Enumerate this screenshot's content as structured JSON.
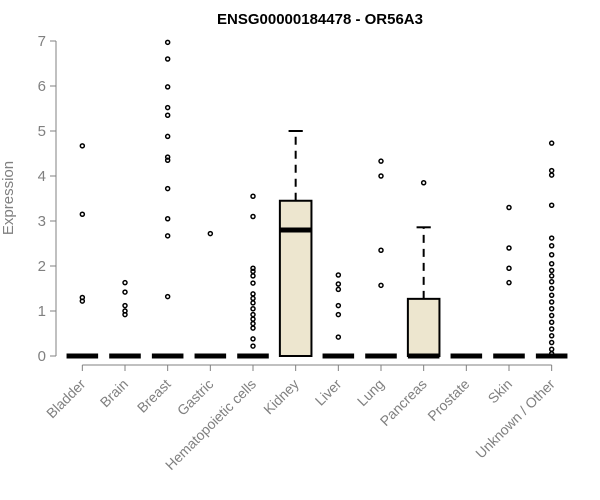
{
  "chart_data": {
    "type": "box",
    "title": "ENSG00000184478 - OR56A3",
    "xlabel": "",
    "ylabel": "Expression",
    "ylim": [
      0,
      7
    ],
    "yticks": [
      "0",
      "1",
      "2",
      "3",
      "4",
      "5",
      "6",
      "7"
    ],
    "grid": false,
    "legend": "none",
    "colors": {
      "box_fill": "#ede6cf",
      "stroke": "#000000",
      "axis": "#808080",
      "text": "#808080"
    },
    "categories": [
      "Bladder",
      "Brain",
      "Breast",
      "Gastric",
      "Hematopoietic cells",
      "Kidney",
      "Liver",
      "Lung",
      "Pancreas",
      "Prostate",
      "Skin",
      "Unknown / Other"
    ],
    "boxes": [
      {
        "category": "Bladder",
        "q1": 0,
        "median": 0,
        "q3": 0,
        "whisker_low": 0,
        "whisker_high": 0,
        "outliers": [
          1.22,
          1.3,
          3.15,
          4.67
        ]
      },
      {
        "category": "Brain",
        "q1": 0,
        "median": 0,
        "q3": 0,
        "whisker_low": 0,
        "whisker_high": 0,
        "outliers": [
          0.92,
          1.0,
          1.12,
          1.42,
          1.63
        ]
      },
      {
        "category": "Breast",
        "q1": 0,
        "median": 0,
        "q3": 0,
        "whisker_low": 0,
        "whisker_high": 0,
        "outliers": [
          1.32,
          2.67,
          3.05,
          3.72,
          4.35,
          4.42,
          4.88,
          5.35,
          5.52,
          5.98,
          6.6,
          6.97
        ]
      },
      {
        "category": "Gastric",
        "q1": 0,
        "median": 0,
        "q3": 0,
        "whisker_low": 0,
        "whisker_high": 0,
        "outliers": [
          2.72
        ]
      },
      {
        "category": "Hematopoietic cells",
        "q1": 0,
        "median": 0,
        "q3": 0,
        "whisker_low": 0,
        "whisker_high": 0,
        "outliers": [
          0.22,
          0.38,
          0.62,
          0.72,
          0.82,
          0.92,
          1.05,
          1.18,
          1.28,
          1.38,
          1.62,
          1.78,
          1.88,
          1.95,
          3.1,
          3.55
        ]
      },
      {
        "category": "Kidney",
        "q1": 0,
        "median": 2.8,
        "q3": 3.45,
        "whisker_low": 0,
        "whisker_high": 5.0,
        "outliers": []
      },
      {
        "category": "Liver",
        "q1": 0,
        "median": 0,
        "q3": 0,
        "whisker_low": 0,
        "whisker_high": 0,
        "outliers": [
          0.42,
          0.92,
          1.12,
          1.48,
          1.6,
          1.8
        ]
      },
      {
        "category": "Lung",
        "q1": 0,
        "median": 0,
        "q3": 0,
        "whisker_low": 0,
        "whisker_high": 0,
        "outliers": [
          1.57,
          2.35,
          4.0,
          4.33
        ]
      },
      {
        "category": "Pancreas",
        "q1": 0,
        "median": 0,
        "q3": 1.27,
        "whisker_low": 0,
        "whisker_high": 2.86,
        "outliers": [
          3.85
        ]
      },
      {
        "category": "Prostate",
        "q1": 0,
        "median": 0,
        "q3": 0,
        "whisker_low": 0,
        "whisker_high": 0,
        "outliers": []
      },
      {
        "category": "Skin",
        "q1": 0,
        "median": 0,
        "q3": 0,
        "whisker_low": 0,
        "whisker_high": 0,
        "outliers": [
          1.63,
          1.95,
          2.4,
          3.3
        ]
      },
      {
        "category": "Unknown / Other",
        "q1": 0,
        "median": 0,
        "q3": 0,
        "whisker_low": 0,
        "whisker_high": 0,
        "outliers": [
          0.05,
          0.15,
          0.3,
          0.45,
          0.6,
          0.75,
          0.9,
          1.05,
          1.2,
          1.35,
          1.5,
          1.65,
          1.78,
          1.9,
          2.05,
          2.25,
          2.45,
          2.62,
          3.35,
          4.02,
          4.12,
          4.73
        ]
      }
    ]
  }
}
